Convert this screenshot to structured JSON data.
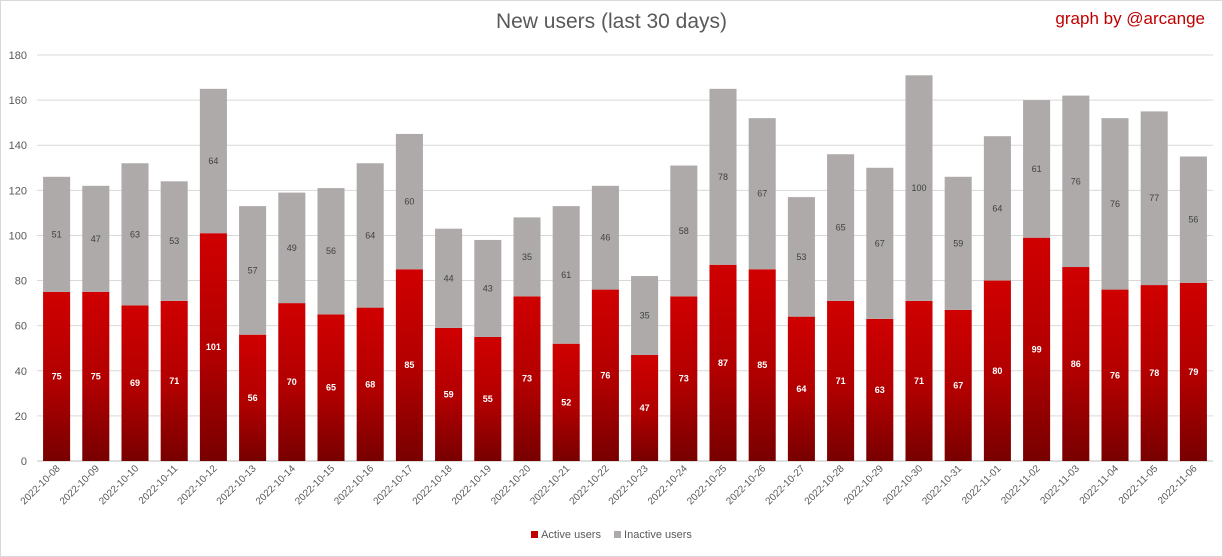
{
  "chart_data": {
    "type": "bar",
    "stacked": true,
    "title": "New users (last 30 days)",
    "watermark": "graph by @arcange",
    "categories": [
      "2022-10-08",
      "2022-10-09",
      "2022-10-10",
      "2022-10-11",
      "2022-10-12",
      "2022-10-13",
      "2022-10-14",
      "2022-10-15",
      "2022-10-16",
      "2022-10-17",
      "2022-10-18",
      "2022-10-19",
      "2022-10-20",
      "2022-10-21",
      "2022-10-22",
      "2022-10-23",
      "2022-10-24",
      "2022-10-25",
      "2022-10-26",
      "2022-10-27",
      "2022-10-28",
      "2022-10-29",
      "2022-10-30",
      "2022-10-31",
      "2022-11-01",
      "2022-11-02",
      "2022-11-03",
      "2022-11-04",
      "2022-11-05",
      "2022-11-06"
    ],
    "series": [
      {
        "name": "Active users",
        "color": "#c00000",
        "values": [
          75,
          75,
          69,
          71,
          101,
          56,
          70,
          65,
          68,
          85,
          59,
          55,
          73,
          52,
          76,
          47,
          73,
          87,
          85,
          64,
          71,
          63,
          71,
          67,
          80,
          99,
          86,
          76,
          78,
          79
        ]
      },
      {
        "name": "Inactive users",
        "color": "#aeaaaa",
        "values": [
          51,
          47,
          63,
          53,
          64,
          57,
          49,
          56,
          64,
          60,
          44,
          43,
          35,
          61,
          46,
          35,
          58,
          78,
          67,
          53,
          65,
          67,
          100,
          59,
          64,
          61,
          76,
          76,
          77,
          56
        ]
      }
    ],
    "ylim": [
      0,
      180
    ],
    "yticks": [
      0,
      20,
      40,
      60,
      80,
      100,
      120,
      140,
      160,
      180
    ],
    "grid": true,
    "legend_position": "bottom"
  }
}
